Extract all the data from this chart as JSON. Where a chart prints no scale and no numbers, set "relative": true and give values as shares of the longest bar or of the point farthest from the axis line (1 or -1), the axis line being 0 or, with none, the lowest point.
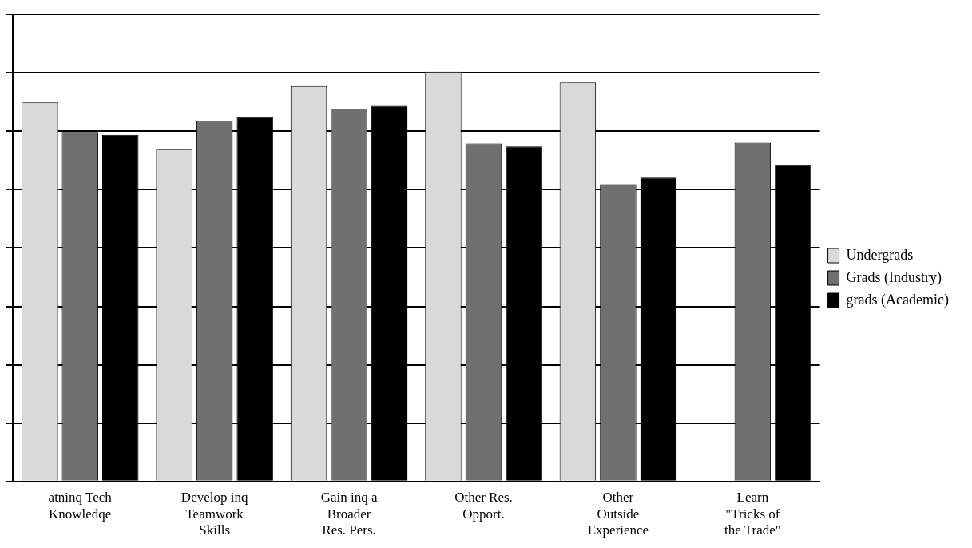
{
  "chart_data": {
    "type": "bar",
    "relative": true,
    "grid": "y",
    "legend": "right",
    "categories": [
      "atninq Tech Knowledqe",
      "Develop inq Teamwork Skills",
      "Gain inq a Broader Res. Pers.",
      "Other Res. Opport.",
      "Other Outside Experience",
      "Learn \"Tricks of the Trade\""
    ],
    "series": [
      {
        "name": "Undergrads",
        "color": "#d9d9d9",
        "values": [
          0.925,
          0.811,
          0.965,
          1,
          0.974,
          null
        ]
      },
      {
        "name": "Grads (Industry)",
        "color": "#707070",
        "values": [
          0.853,
          0.88,
          0.91,
          0.825,
          0.726,
          0.827
        ]
      },
      {
        "name": "grads (Academic)",
        "color": "#000000",
        "values": [
          0.846,
          0.889,
          0.917,
          0.818,
          0.742,
          0.773
        ]
      }
    ]
  }
}
